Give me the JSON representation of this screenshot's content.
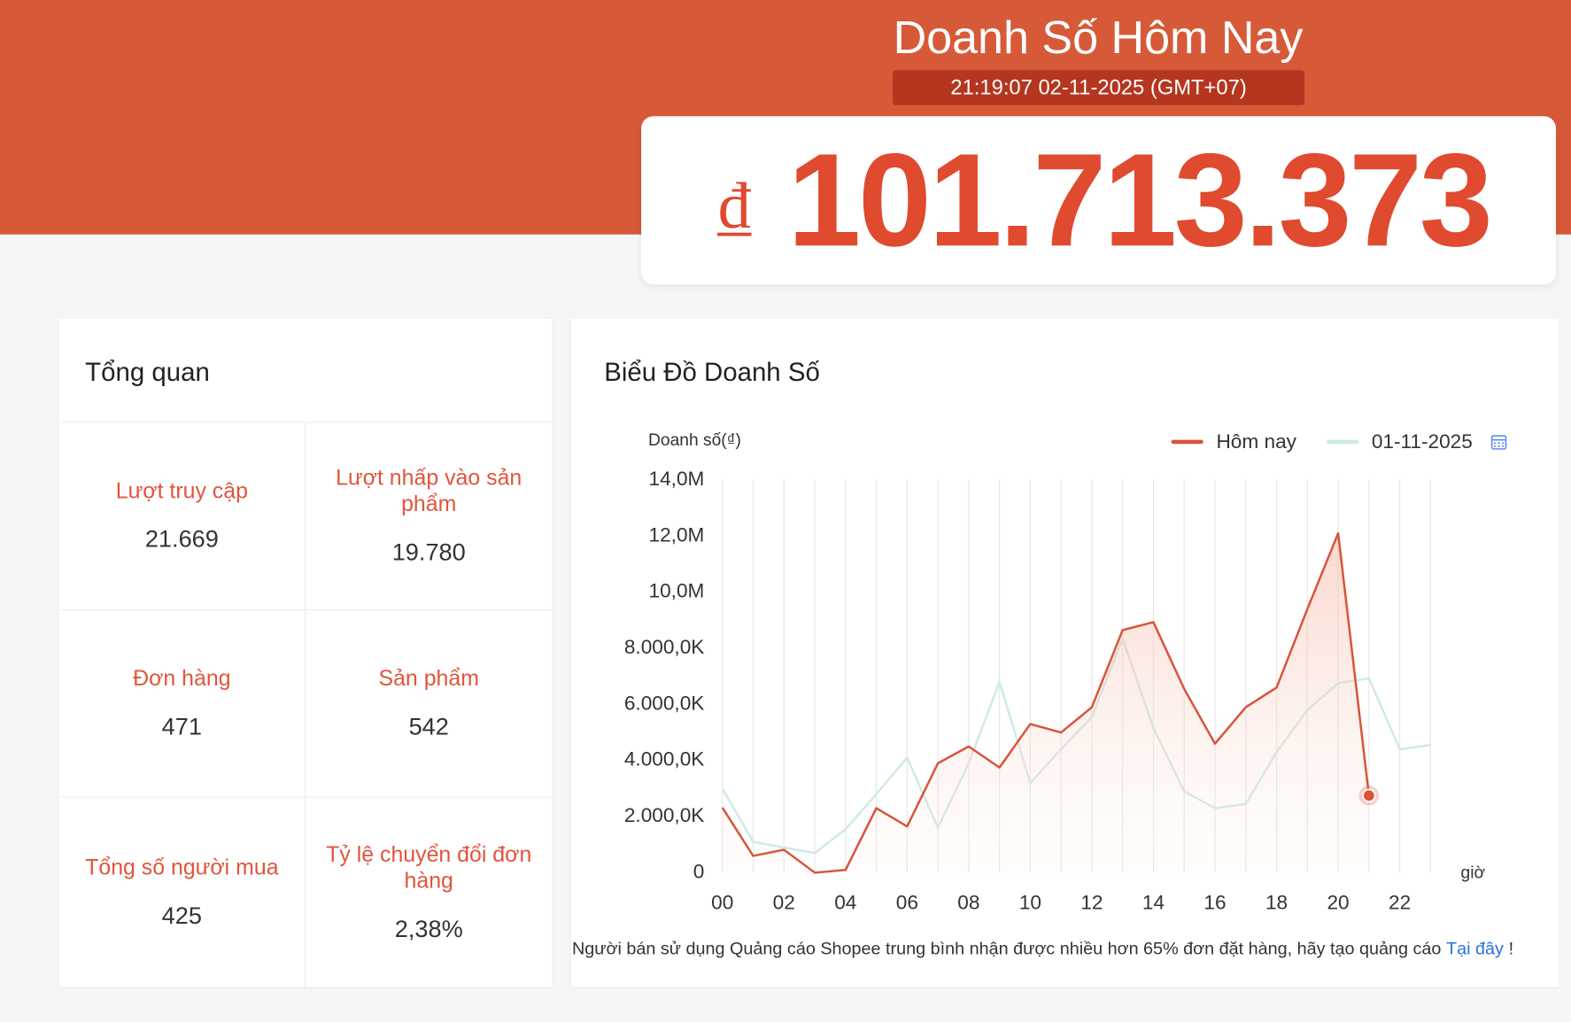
{
  "header": {
    "title": "Doanh Số Hôm Nay",
    "timestamp": "21:19:07 02-11-2025 (GMT+07)",
    "currency": "₫",
    "total": "101.713.373"
  },
  "overview": {
    "title": "Tổng quan",
    "stats": [
      {
        "label": "Lượt truy cập",
        "value": "21.669"
      },
      {
        "label": "Lượt nhấp vào sản phẩm",
        "value": "19.780"
      },
      {
        "label": "Đơn hàng",
        "value": "471"
      },
      {
        "label": "Sản phẩm",
        "value": "542"
      },
      {
        "label": "Tổng số người mua",
        "value": "425"
      },
      {
        "label": "Tỷ lệ chuyển đổi đơn hàng",
        "value": "2,38%"
      }
    ]
  },
  "chart_data": {
    "type": "line",
    "title": "Biểu Đồ Doanh Số",
    "y_label": "Doanh số(₫)",
    "x_label": "giờ",
    "categories": [
      "00",
      null,
      "02",
      null,
      "04",
      null,
      "06",
      null,
      "08",
      null,
      "10",
      null,
      "12",
      null,
      "14",
      null,
      "16",
      null,
      "18",
      null,
      "20",
      null,
      "22",
      null
    ],
    "series": [
      {
        "name": "Hôm nay",
        "color": "#d9533a",
        "area": true,
        "highlight_last": true,
        "values": [
          2320000,
          600000,
          820000,
          0,
          100000,
          2300000,
          1650000,
          3900000,
          4500000,
          3750000,
          5300000,
          5000000,
          5900000,
          8650000,
          8930000,
          6550000,
          4600000,
          5900000,
          6600000,
          9400000,
          12100000,
          2750000,
          null,
          null
        ]
      },
      {
        "name": "01-11-2025",
        "color": "#cfeae4",
        "area": false,
        "highlight_last": false,
        "values": [
          3000000,
          1100000,
          900000,
          700000,
          1550000,
          2800000,
          4100000,
          1600000,
          3900000,
          6800000,
          3200000,
          4400000,
          5550000,
          8350000,
          5150000,
          2900000,
          2300000,
          2450000,
          4300000,
          5800000,
          6750000,
          6930000,
          4400000,
          4550000
        ]
      }
    ],
    "ylim": [
      0,
      14000000
    ],
    "yticks": [
      0,
      {
        "value": 2000000,
        "label": "2.000,0K"
      },
      {
        "value": 4000000,
        "label": "4.000,0K"
      },
      {
        "value": 6000000,
        "label": "6.000,0K"
      },
      {
        "value": 8000000,
        "label": "8.000,0K"
      },
      {
        "value": 10000000,
        "label": "10,0M"
      },
      {
        "value": 12000000,
        "label": "12,0M"
      },
      {
        "value": 14000000,
        "label": "14,0M"
      }
    ],
    "grid": true,
    "legend": "top-right",
    "note": "Người bán sử dụng Quảng cáo Shopee trung bình nhận được nhiều hơn 65% đơn đặt hàng, hãy tạo quảng cáo",
    "note_link": "Tại đây",
    "note_end": "!"
  }
}
